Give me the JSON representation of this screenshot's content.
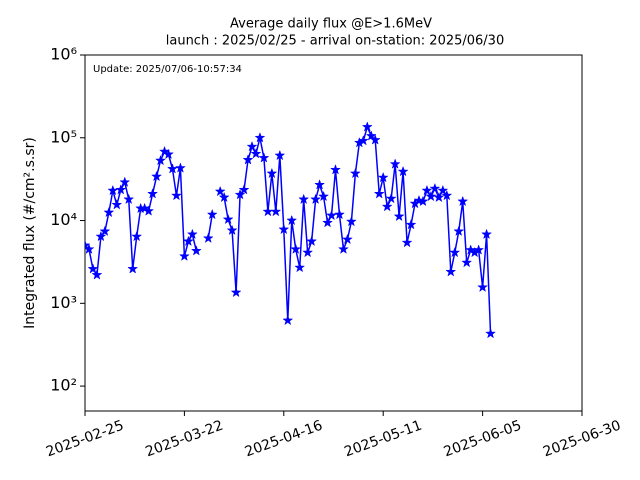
{
  "chart_data": {
    "type": "line",
    "title": "Average daily flux @E>1.6MeV",
    "subtitle": "launch : 2025/02/25 - arrival on-station: 2025/06/30",
    "annotation": "Update: 2025/07/06-10:57:34",
    "y_label": "Integrated flux (#/cm².s.sr)",
    "color": "#0000ff",
    "log_y": true,
    "x": [
      "2025-02-25",
      "2025-02-26",
      "2025-02-27",
      "2025-02-28",
      "2025-03-01",
      "2025-03-02",
      "2025-03-03",
      "2025-03-04",
      "2025-03-05",
      "2025-03-06",
      "2025-03-07",
      "2025-03-08",
      "2025-03-09",
      "2025-03-10",
      "2025-03-11",
      "2025-03-12",
      "2025-03-13",
      "2025-03-14",
      "2025-03-15",
      "2025-03-16",
      "2025-03-17",
      "2025-03-18",
      "2025-03-19",
      "2025-03-20",
      "2025-03-21",
      "2025-03-22",
      "2025-03-23",
      "2025-03-24",
      "2025-03-25",
      "2025-03-26",
      "2025-03-27",
      "2025-03-28",
      "2025-03-29",
      "2025-03-30",
      "2025-03-31",
      "2025-04-01",
      "2025-04-02",
      "2025-04-03",
      "2025-04-04",
      "2025-04-05",
      "2025-04-06",
      "2025-04-07",
      "2025-04-08",
      "2025-04-09",
      "2025-04-10",
      "2025-04-11",
      "2025-04-12",
      "2025-04-13",
      "2025-04-14",
      "2025-04-15",
      "2025-04-16",
      "2025-04-17",
      "2025-04-18",
      "2025-04-19",
      "2025-04-20",
      "2025-04-21",
      "2025-04-22",
      "2025-04-23",
      "2025-04-24",
      "2025-04-25",
      "2025-04-26",
      "2025-04-27",
      "2025-04-28",
      "2025-04-29",
      "2025-04-30",
      "2025-05-01",
      "2025-05-02",
      "2025-05-03",
      "2025-05-04",
      "2025-05-05",
      "2025-05-06",
      "2025-05-07",
      "2025-05-08",
      "2025-05-09",
      "2025-05-10",
      "2025-05-11",
      "2025-05-12",
      "2025-05-13",
      "2025-05-14",
      "2025-05-15",
      "2025-05-16",
      "2025-05-17",
      "2025-05-18",
      "2025-05-19",
      "2025-05-20",
      "2025-05-21",
      "2025-05-22",
      "2025-05-23",
      "2025-05-24",
      "2025-05-25",
      "2025-05-26",
      "2025-05-27",
      "2025-05-28",
      "2025-05-29",
      "2025-05-30",
      "2025-05-31",
      "2025-06-01",
      "2025-06-02",
      "2025-06-03",
      "2025-06-04",
      "2025-06-05",
      "2025-06-06",
      "2025-06-07"
    ],
    "values": [
      5000,
      4500,
      2600,
      2200,
      6400,
      7400,
      12500,
      23000,
      15500,
      23500,
      29000,
      18000,
      2600,
      6400,
      14000,
      14000,
      13000,
      21000,
      34000,
      53000,
      68000,
      63000,
      42000,
      20000,
      43000,
      3700,
      5600,
      6800,
      4300,
      null,
      null,
      6100,
      11800,
      null,
      22400,
      19000,
      10300,
      7600,
      1350,
      20500,
      23500,
      54000,
      78000,
      64000,
      100000,
      57000,
      12800,
      37000,
      12800,
      61000,
      7800,
      620,
      10000,
      4500,
      2700,
      18000,
      4100,
      5600,
      18000,
      27000,
      19500,
      9400,
      11500,
      41000,
      11800,
      4500,
      5900,
      9700,
      37000,
      87000,
      92000,
      135000,
      105000,
      94000,
      21000,
      33000,
      14700,
      18400,
      48000,
      11200,
      39000,
      5400,
      8900,
      16000,
      17400,
      17000,
      23000,
      19500,
      24300,
      19000,
      23000,
      20000,
      2400,
      4100,
      7400,
      17000,
      3100,
      4400,
      4100,
      4400,
      1560,
      6800,
      430
    ],
    "xlim": [
      "2025-02-25",
      "2025-06-30"
    ],
    "xticks": [
      "2025-02-25",
      "2025-03-22",
      "2025-04-16",
      "2025-05-11",
      "2025-06-05",
      "2025-06-30"
    ],
    "ylim": [
      50,
      1000000
    ],
    "yticks": [
      {
        "value": 100,
        "label": "10²"
      },
      {
        "value": 1000,
        "label": "10³"
      },
      {
        "value": 10000,
        "label": "10⁴"
      },
      {
        "value": 100000,
        "label": "10⁵"
      },
      {
        "value": 1000000,
        "label": "10⁶"
      }
    ]
  }
}
